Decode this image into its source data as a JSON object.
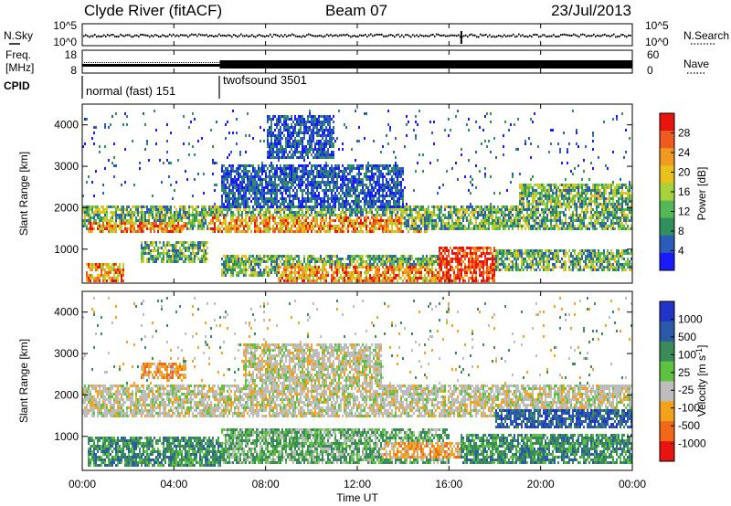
{
  "header": {
    "station": "Clyde River (fitACF)",
    "beam": "Beam 07",
    "date": "23/Jul/2013"
  },
  "status_panels": {
    "nsky_label": "N.Sky",
    "nsearch_label": "N.Search",
    "freq_label_1": "Freq.",
    "freq_label_2": "[MHz]",
    "nave_label": "Nave",
    "cpid_label": "CPID",
    "noise_ticks_left": [
      "10^5",
      "10^0"
    ],
    "noise_ticks_right": [
      "10^5",
      "10^0"
    ],
    "freq_ticks_left": [
      "18",
      "8"
    ],
    "nave_ticks_right": [
      "60",
      "0"
    ],
    "cpid_segments": [
      {
        "start_hour": 0,
        "label": "normal (fast) 151"
      },
      {
        "start_hour": 6,
        "label": "twofsound 3501"
      }
    ]
  },
  "colors": {
    "power": [
      "#1a1aff",
      "#2a5cb8",
      "#2f8f5f",
      "#55b855",
      "#a6d23a",
      "#e8c21a",
      "#f29a1f",
      "#ee5a20",
      "#e8140f"
    ],
    "velocity": [
      "#e8140f",
      "#f06818",
      "#f3a21a",
      "#bdbdbd",
      "#5cc240",
      "#3a8a5a",
      "#2a5aa8",
      "#2034c8"
    ]
  },
  "chart_data": [
    {
      "type": "heatmap",
      "name": "power",
      "xlabel": "",
      "ylabel": "Slant Range [km]",
      "xlim": [
        0,
        24
      ],
      "ylim": [
        180,
        4500
      ],
      "yticks": [
        "1000",
        "2000",
        "3000",
        "4000"
      ],
      "colorbar_label": "Power [dB]",
      "colorbar_ticks": [
        "4",
        "8",
        "12",
        "16",
        "20",
        "24",
        "28"
      ],
      "bands": [
        {
          "h0": 0,
          "h1": 24,
          "r_lo": 1500,
          "r_hi": 2100,
          "level": "mid"
        },
        {
          "h0": 0.2,
          "h1": 4.5,
          "r_lo": 1450,
          "r_hi": 1700,
          "level": "high"
        },
        {
          "h0": 5.5,
          "h1": 15,
          "r_lo": 1400,
          "r_hi": 1800,
          "level": "high"
        },
        {
          "h0": 14,
          "h1": 24,
          "r_lo": 1500,
          "r_hi": 2000,
          "level": "mid"
        },
        {
          "h0": 0.1,
          "h1": 1.8,
          "r_lo": 250,
          "r_hi": 700,
          "level": "high"
        },
        {
          "h0": 2.5,
          "h1": 5.5,
          "r_lo": 700,
          "r_hi": 1200,
          "level": "mid"
        },
        {
          "h0": 6,
          "h1": 16,
          "r_lo": 400,
          "r_hi": 900,
          "level": "mid"
        },
        {
          "h0": 8.5,
          "h1": 15.5,
          "r_lo": 250,
          "r_hi": 600,
          "level": "high"
        },
        {
          "h0": 15.5,
          "h1": 18,
          "r_lo": 200,
          "r_hi": 1100,
          "level": "max"
        },
        {
          "h0": 18,
          "h1": 24,
          "r_lo": 500,
          "r_hi": 1000,
          "level": "mid"
        },
        {
          "h0": 6,
          "h1": 14,
          "r_lo": 2000,
          "r_hi": 3100,
          "level": "low"
        },
        {
          "h0": 19,
          "h1": 24,
          "r_lo": 2000,
          "r_hi": 2600,
          "level": "mid"
        },
        {
          "h0": 8,
          "h1": 11,
          "r_lo": 3200,
          "r_hi": 4300,
          "level": "low"
        }
      ]
    },
    {
      "type": "heatmap",
      "name": "velocity",
      "xlabel": "Time UT",
      "ylabel": "Slant Range [km]",
      "xlim": [
        0,
        24
      ],
      "ylim": [
        180,
        4500
      ],
      "xticks": [
        "00:00",
        "04:00",
        "08:00",
        "12:00",
        "16:00",
        "20:00",
        "00:00"
      ],
      "yticks": [
        "1000",
        "2000",
        "3000",
        "4000"
      ],
      "colorbar_label": "Velocity [m s^-1]",
      "colorbar_ticks": [
        "1000",
        "500",
        "100",
        "25",
        "-25",
        "-100",
        "-500",
        "-1000"
      ],
      "bands": [
        {
          "h0": 0,
          "h1": 24,
          "r_lo": 1500,
          "r_hi": 2300,
          "level": "zero"
        },
        {
          "h0": 0.2,
          "h1": 6,
          "r_lo": 300,
          "r_hi": 1000,
          "level": "pos_mid"
        },
        {
          "h0": 6,
          "h1": 16,
          "r_lo": 400,
          "r_hi": 1200,
          "level": "pos_low"
        },
        {
          "h0": 13,
          "h1": 17.5,
          "r_lo": 500,
          "r_hi": 900,
          "level": "neg_low"
        },
        {
          "h0": 16.5,
          "h1": 24,
          "r_lo": 400,
          "r_hi": 1100,
          "level": "pos_mid"
        },
        {
          "h0": 18,
          "h1": 24,
          "r_lo": 1200,
          "r_hi": 1700,
          "level": "pos_high"
        },
        {
          "h0": 7,
          "h1": 13,
          "r_lo": 2300,
          "r_hi": 3300,
          "level": "zero"
        },
        {
          "h0": 2.5,
          "h1": 4.5,
          "r_lo": 2400,
          "r_hi": 2800,
          "level": "neg_low"
        }
      ]
    }
  ]
}
